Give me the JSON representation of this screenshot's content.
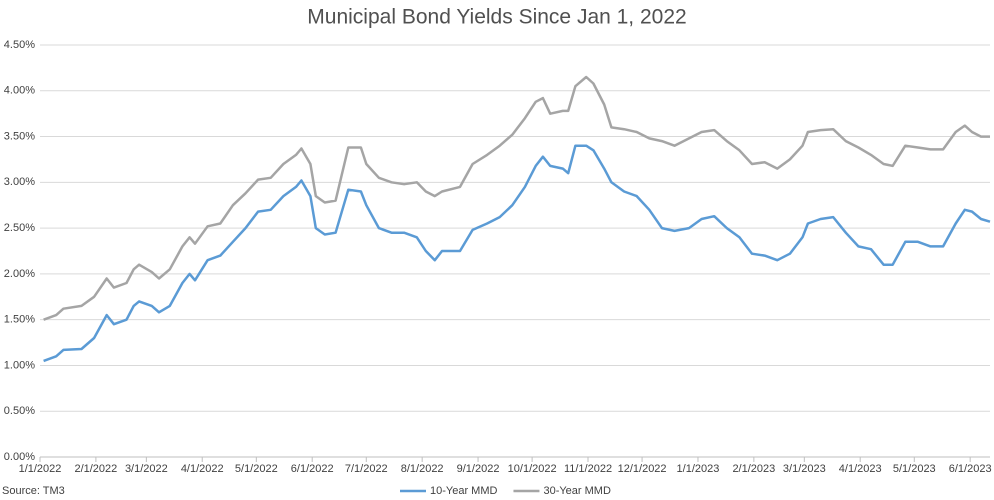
{
  "chart_data": {
    "type": "line",
    "title": "Municipal Bond Yields Since Jan 1, 2022",
    "source": "Source: TM3",
    "x": [
      "1/3/2022",
      "1/10/2022",
      "1/14/2022",
      "1/24/2022",
      "1/31/2022",
      "2/7/2022",
      "2/11/2022",
      "2/18/2022",
      "2/22/2022",
      "2/25/2022",
      "3/4/2022",
      "3/8/2022",
      "3/14/2022",
      "3/21/2022",
      "3/25/2022",
      "3/28/2022",
      "4/4/2022",
      "4/11/2022",
      "4/18/2022",
      "4/25/2022",
      "5/2/2022",
      "5/9/2022",
      "5/16/2022",
      "5/23/2022",
      "5/26/2022",
      "5/31/2022",
      "6/3/2022",
      "6/8/2022",
      "6/14/2022",
      "6/21/2022",
      "6/28/2022",
      "7/1/2022",
      "7/8/2022",
      "7/15/2022",
      "7/22/2022",
      "7/29/2022",
      "8/3/2022",
      "8/8/2022",
      "8/12/2022",
      "8/22/2022",
      "8/29/2022",
      "9/6/2022",
      "9/13/2022",
      "9/20/2022",
      "9/27/2022",
      "10/3/2022",
      "10/7/2022",
      "10/11/2022",
      "10/18/2022",
      "10/21/2022",
      "10/25/2022",
      "10/31/2022",
      "11/4/2022",
      "11/10/2022",
      "11/14/2022",
      "11/21/2022",
      "11/28/2022",
      "12/5/2022",
      "12/12/2022",
      "12/19/2022",
      "12/27/2022",
      "1/3/2023",
      "1/10/2023",
      "1/17/2023",
      "1/24/2023",
      "1/31/2023",
      "2/7/2023",
      "2/14/2023",
      "2/21/2023",
      "2/28/2023",
      "3/3/2023",
      "3/10/2023",
      "3/17/2023",
      "3/24/2023",
      "3/31/2023",
      "4/7/2023",
      "4/14/2023",
      "4/19/2023",
      "4/26/2023",
      "5/3/2023",
      "5/10/2023",
      "5/17/2023",
      "5/24/2023",
      "5/29/2023",
      "6/2/2023",
      "6/7/2023",
      "6/12/2023"
    ],
    "series": [
      {
        "name": "10-Year MMD",
        "color": "#5b9bd5",
        "values": [
          1.05,
          1.1,
          1.17,
          1.18,
          1.3,
          1.55,
          1.45,
          1.5,
          1.65,
          1.7,
          1.65,
          1.58,
          1.65,
          1.9,
          2.0,
          1.93,
          2.15,
          2.2,
          2.35,
          2.5,
          2.68,
          2.7,
          2.85,
          2.95,
          3.02,
          2.85,
          2.5,
          2.43,
          2.45,
          2.92,
          2.9,
          2.75,
          2.5,
          2.45,
          2.45,
          2.4,
          2.25,
          2.15,
          2.25,
          2.25,
          2.48,
          2.55,
          2.62,
          2.75,
          2.95,
          3.18,
          3.28,
          3.18,
          3.15,
          3.1,
          3.4,
          3.4,
          3.35,
          3.15,
          3.0,
          2.9,
          2.85,
          2.7,
          2.5,
          2.47,
          2.5,
          2.6,
          2.63,
          2.5,
          2.4,
          2.22,
          2.2,
          2.15,
          2.22,
          2.4,
          2.55,
          2.6,
          2.62,
          2.45,
          2.3,
          2.27,
          2.1,
          2.1,
          2.35,
          2.35,
          2.3,
          2.3,
          2.55,
          2.7,
          2.68,
          2.6,
          2.57
        ]
      },
      {
        "name": "30-Year MMD",
        "color": "#a5a5a5",
        "values": [
          1.5,
          1.55,
          1.62,
          1.65,
          1.75,
          1.95,
          1.85,
          1.9,
          2.05,
          2.1,
          2.02,
          1.95,
          2.05,
          2.3,
          2.4,
          2.33,
          2.52,
          2.55,
          2.75,
          2.88,
          3.03,
          3.05,
          3.2,
          3.3,
          3.37,
          3.2,
          2.85,
          2.78,
          2.8,
          3.38,
          3.38,
          3.2,
          3.05,
          3.0,
          2.98,
          3.0,
          2.9,
          2.85,
          2.9,
          2.95,
          3.2,
          3.3,
          3.4,
          3.52,
          3.7,
          3.88,
          3.92,
          3.75,
          3.78,
          3.78,
          4.05,
          4.15,
          4.08,
          3.85,
          3.6,
          3.58,
          3.55,
          3.48,
          3.45,
          3.4,
          3.48,
          3.55,
          3.57,
          3.45,
          3.35,
          3.2,
          3.22,
          3.15,
          3.25,
          3.4,
          3.55,
          3.57,
          3.58,
          3.45,
          3.38,
          3.3,
          3.2,
          3.18,
          3.4,
          3.38,
          3.36,
          3.36,
          3.55,
          3.62,
          3.55,
          3.5,
          3.5
        ]
      }
    ],
    "xlim": [
      "1/1/2022",
      "6/12/2023"
    ],
    "xticks": [
      "1/1/2022",
      "2/1/2022",
      "3/1/2022",
      "4/1/2022",
      "5/1/2022",
      "6/1/2022",
      "7/1/2022",
      "8/1/2022",
      "9/1/2022",
      "10/1/2022",
      "11/1/2022",
      "12/1/2022",
      "1/1/2023",
      "2/1/2023",
      "3/1/2023",
      "4/1/2023",
      "5/1/2023",
      "6/1/2023"
    ],
    "ylim": [
      0,
      4.5
    ],
    "yticks": [
      {
        "value": 0,
        "label": "0.00%"
      },
      {
        "value": 0.5,
        "label": "0.50%"
      },
      {
        "value": 1,
        "label": "1.00%"
      },
      {
        "value": 1.5,
        "label": "1.50%"
      },
      {
        "value": 2,
        "label": "2.00%"
      },
      {
        "value": 2.5,
        "label": "2.50%"
      },
      {
        "value": 3,
        "label": "3.00%"
      },
      {
        "value": 3.5,
        "label": "3.50%"
      },
      {
        "value": 4,
        "label": "4.00%"
      },
      {
        "value": 4.5,
        "label": "4.50%"
      }
    ],
    "grid": true,
    "legend": "bottom"
  }
}
